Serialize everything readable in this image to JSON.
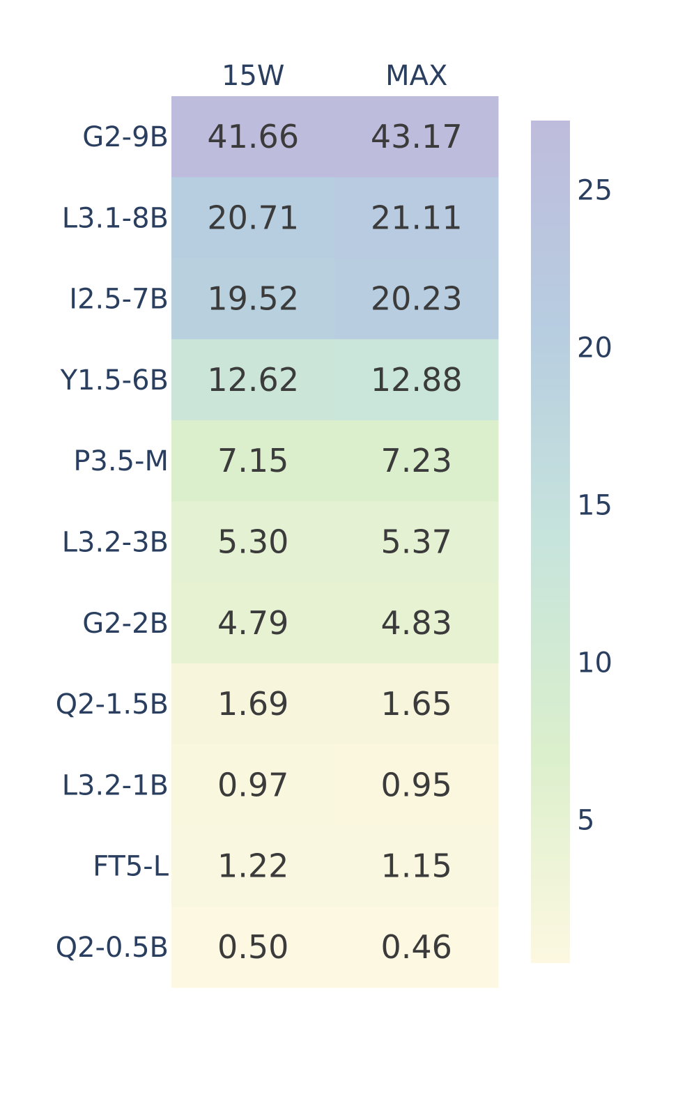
{
  "chart_data": {
    "type": "heatmap",
    "title": "",
    "xlabel": "",
    "ylabel": "",
    "columns": [
      "15W",
      "MAX"
    ],
    "rows": [
      "G2-9B",
      "L3.1-8B",
      "I2.5-7B",
      "Y1.5-6B",
      "P3.5-M",
      "L3.2-3B",
      "G2-2B",
      "Q2-1.5B",
      "L3.2-1B",
      "FT5-L",
      "Q2-0.5B"
    ],
    "values": [
      [
        41.66,
        43.17
      ],
      [
        20.71,
        21.11
      ],
      [
        19.52,
        20.23
      ],
      [
        12.62,
        12.88
      ],
      [
        7.15,
        7.23
      ],
      [
        5.3,
        5.37
      ],
      [
        4.79,
        4.83
      ],
      [
        1.69,
        1.65
      ],
      [
        0.97,
        0.95
      ],
      [
        1.22,
        1.15
      ],
      [
        0.5,
        0.46
      ]
    ],
    "cell_labels": [
      [
        "41.66",
        "43.17"
      ],
      [
        "20.71",
        "21.11"
      ],
      [
        "19.52",
        "20.23"
      ],
      [
        "12.62",
        "12.88"
      ],
      [
        "7.15",
        "7.23"
      ],
      [
        "5.30",
        "5.37"
      ],
      [
        "4.79",
        "4.83"
      ],
      [
        "1.69",
        "1.65"
      ],
      [
        "0.97",
        "0.95"
      ],
      [
        "1.22",
        "1.15"
      ],
      [
        "0.50",
        "0.46"
      ]
    ],
    "color_range": [
      0.46,
      27.2
    ],
    "colorscale": [
      "#fdf8e1",
      "#dbefcc",
      "#c7e4dc",
      "#b7cde0",
      "#bebcdc"
    ],
    "colorbar_ticks": [
      "5",
      "10",
      "15",
      "20",
      "25"
    ],
    "colorbar_tick_values": [
      5,
      10,
      15,
      20,
      25
    ],
    "legend": "colorbar-right"
  }
}
